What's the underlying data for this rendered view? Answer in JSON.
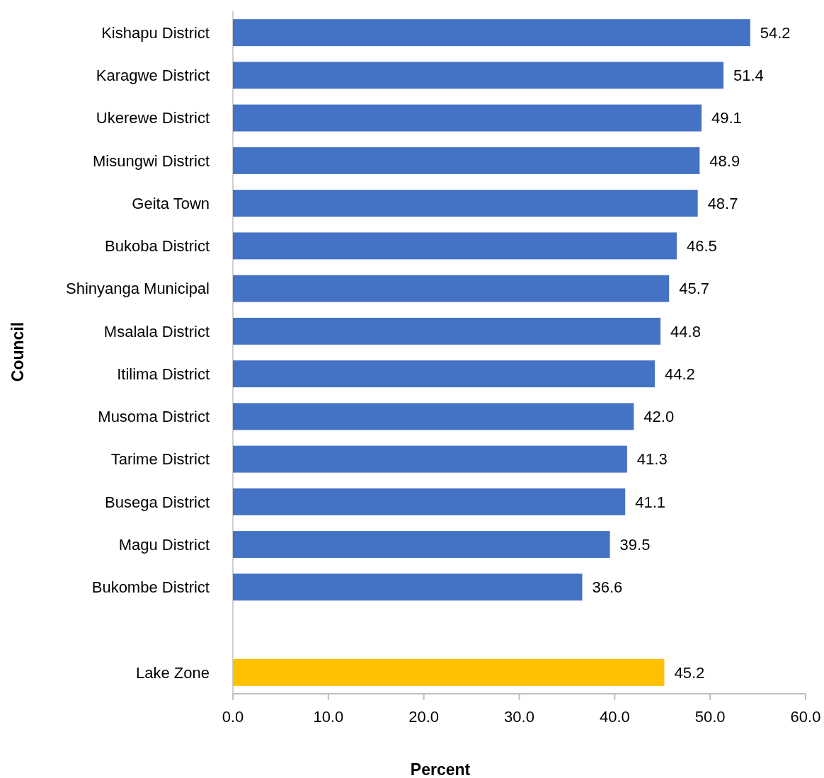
{
  "chart_data": {
    "type": "bar",
    "orientation": "horizontal",
    "xlabel": "Percent",
    "ylabel": "Council",
    "categories": [
      "Kishapu District",
      "Karagwe District",
      "Ukerewe District",
      "Misungwi District",
      "Geita Town",
      "Bukoba District",
      "Shinyanga Municipal",
      "Msalala District",
      "Itilima District",
      "Musoma District",
      "Tarime District",
      "Busega District",
      "Magu District",
      "Bukombe District",
      null,
      "Lake Zone"
    ],
    "values": [
      54.2,
      51.4,
      49.1,
      48.9,
      48.7,
      46.5,
      45.7,
      44.8,
      44.2,
      42.0,
      41.3,
      41.1,
      39.5,
      36.6,
      null,
      45.2
    ],
    "value_labels": [
      "54.2",
      "51.4",
      "49.1",
      "48.9",
      "48.7",
      "46.5",
      "45.7",
      "44.8",
      "44.2",
      "42.0",
      "41.3",
      "41.1",
      "39.5",
      "36.6",
      null,
      "45.2"
    ],
    "colors": [
      "#4472c4",
      "#4472c4",
      "#4472c4",
      "#4472c4",
      "#4472c4",
      "#4472c4",
      "#4472c4",
      "#4472c4",
      "#4472c4",
      "#4472c4",
      "#4472c4",
      "#4472c4",
      "#4472c4",
      "#4472c4",
      null,
      "#ffc000"
    ],
    "xlim": [
      0,
      60
    ],
    "xticks": [
      {
        "value": 0,
        "label": "0.0"
      },
      {
        "value": 10,
        "label": "10.0"
      },
      {
        "value": 20,
        "label": "20.0"
      },
      {
        "value": 30,
        "label": "30.0"
      },
      {
        "value": 40,
        "label": "40.0"
      },
      {
        "value": 50,
        "label": "50.0"
      },
      {
        "value": 60,
        "label": "60.0"
      }
    ],
    "grid": false
  }
}
